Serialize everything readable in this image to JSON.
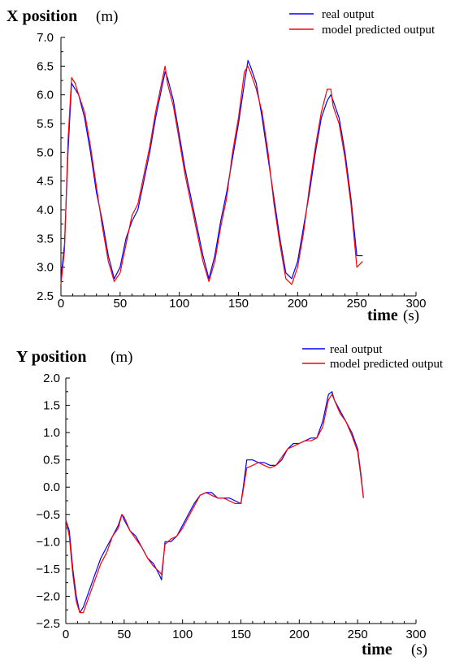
{
  "chart_data": [
    {
      "type": "line",
      "ylabel": "X position",
      "ylabel_unit": "(m)",
      "xlabel": "time",
      "xlabel_unit": "(s)",
      "xlim": [
        0,
        300
      ],
      "ylim": [
        2.5,
        7.0
      ],
      "xticks": [
        "0",
        "50",
        "100",
        "150",
        "200",
        "250",
        "300"
      ],
      "yticks": [
        "2.5",
        "3.0",
        "3.5",
        "4.0",
        "4.5",
        "5.0",
        "5.5",
        "6.0",
        "6.5",
        "7.0"
      ],
      "legend_position": "top-right",
      "series": [
        {
          "name": "real output",
          "color": "#0000ff",
          "x": [
            0,
            3,
            6,
            9,
            12,
            15,
            20,
            25,
            30,
            35,
            40,
            45,
            50,
            55,
            60,
            65,
            70,
            75,
            80,
            85,
            88,
            90,
            95,
            100,
            105,
            110,
            115,
            120,
            125,
            130,
            135,
            140,
            145,
            150,
            155,
            158,
            160,
            165,
            170,
            175,
            180,
            185,
            190,
            195,
            200,
            205,
            210,
            215,
            220,
            225,
            228,
            230,
            235,
            240,
            245,
            250,
            255
          ],
          "y": [
            2.8,
            3.4,
            5.0,
            6.2,
            6.1,
            6.0,
            5.6,
            5.0,
            4.3,
            3.8,
            3.2,
            2.8,
            3.0,
            3.5,
            3.8,
            4.0,
            4.5,
            5.0,
            5.6,
            6.1,
            6.4,
            6.3,
            5.9,
            5.3,
            4.7,
            4.2,
            3.7,
            3.2,
            2.8,
            3.2,
            3.8,
            4.3,
            4.9,
            5.5,
            6.2,
            6.6,
            6.5,
            6.2,
            5.6,
            4.9,
            4.2,
            3.5,
            2.9,
            2.8,
            3.1,
            3.7,
            4.3,
            5.0,
            5.6,
            5.9,
            6.0,
            5.9,
            5.6,
            5.0,
            4.2,
            3.2,
            3.2
          ]
        },
        {
          "name": "model predicted output",
          "color": "#ff0000",
          "x": [
            0,
            3,
            6,
            9,
            12,
            15,
            20,
            25,
            30,
            35,
            40,
            45,
            50,
            55,
            60,
            65,
            70,
            75,
            80,
            85,
            88,
            90,
            95,
            100,
            105,
            110,
            115,
            120,
            125,
            130,
            135,
            140,
            145,
            150,
            155,
            158,
            160,
            165,
            170,
            175,
            180,
            185,
            190,
            195,
            200,
            205,
            210,
            215,
            220,
            225,
            228,
            230,
            235,
            240,
            245,
            250,
            255
          ],
          "y": [
            2.7,
            3.3,
            5.2,
            6.3,
            6.2,
            6.0,
            5.7,
            5.1,
            4.4,
            3.7,
            3.1,
            2.75,
            2.9,
            3.4,
            3.9,
            4.1,
            4.6,
            5.1,
            5.7,
            6.2,
            6.5,
            6.2,
            5.8,
            5.2,
            4.6,
            4.1,
            3.6,
            3.1,
            2.75,
            3.1,
            3.7,
            4.2,
            5.0,
            5.6,
            6.4,
            6.5,
            6.4,
            6.1,
            5.7,
            5.0,
            4.1,
            3.4,
            2.8,
            2.7,
            3.0,
            3.6,
            4.4,
            5.1,
            5.7,
            6.1,
            6.1,
            5.8,
            5.5,
            4.9,
            4.1,
            3.0,
            3.1
          ]
        }
      ]
    },
    {
      "type": "line",
      "ylabel": "Y position",
      "ylabel_unit": "(m)",
      "xlabel": "time",
      "xlabel_unit": "(s)",
      "xlim": [
        0,
        300
      ],
      "ylim": [
        -2.5,
        2.0
      ],
      "xticks": [
        "0",
        "50",
        "100",
        "150",
        "200",
        "250",
        "300"
      ],
      "yticks": [
        "−2.5",
        "−2.0",
        "−1.5",
        "−1.0",
        "−0.5",
        "0.0",
        "0.5",
        "1.0",
        "1.5",
        "2.0"
      ],
      "legend_position": "top-right",
      "series": [
        {
          "name": "real output",
          "color": "#0000ff",
          "x": [
            0,
            3,
            6,
            9,
            12,
            15,
            20,
            25,
            30,
            35,
            40,
            45,
            48,
            50,
            55,
            60,
            65,
            70,
            75,
            80,
            82,
            85,
            90,
            95,
            100,
            105,
            110,
            115,
            120,
            125,
            130,
            135,
            140,
            145,
            150,
            152,
            155,
            160,
            165,
            170,
            175,
            180,
            185,
            190,
            195,
            200,
            205,
            210,
            215,
            220,
            225,
            228,
            230,
            235,
            240,
            245,
            250,
            253,
            255
          ],
          "y": [
            -0.6,
            -0.8,
            -1.5,
            -2.0,
            -2.3,
            -2.2,
            -1.9,
            -1.6,
            -1.3,
            -1.1,
            -0.9,
            -0.7,
            -0.5,
            -0.6,
            -0.8,
            -0.9,
            -1.1,
            -1.3,
            -1.4,
            -1.6,
            -1.7,
            -1.0,
            -1.0,
            -0.9,
            -0.7,
            -0.5,
            -0.3,
            -0.15,
            -0.1,
            -0.1,
            -0.2,
            -0.2,
            -0.2,
            -0.25,
            -0.3,
            0.0,
            0.5,
            0.5,
            0.45,
            0.45,
            0.4,
            0.4,
            0.5,
            0.7,
            0.8,
            0.8,
            0.85,
            0.9,
            0.9,
            1.2,
            1.7,
            1.75,
            1.6,
            1.4,
            1.2,
            1.0,
            0.7,
            0.2,
            -0.2
          ]
        },
        {
          "name": "model predicted output",
          "color": "#ff0000",
          "x": [
            0,
            3,
            6,
            9,
            12,
            15,
            20,
            25,
            30,
            35,
            40,
            45,
            48,
            50,
            55,
            60,
            65,
            70,
            75,
            80,
            82,
            85,
            90,
            95,
            100,
            105,
            110,
            115,
            120,
            125,
            130,
            135,
            140,
            145,
            150,
            152,
            155,
            160,
            165,
            170,
            175,
            180,
            185,
            190,
            195,
            200,
            205,
            210,
            215,
            220,
            225,
            228,
            230,
            235,
            240,
            245,
            250,
            253,
            255
          ],
          "y": [
            -0.6,
            -0.9,
            -1.6,
            -2.1,
            -2.3,
            -2.3,
            -2.0,
            -1.7,
            -1.4,
            -1.2,
            -0.9,
            -0.75,
            -0.5,
            -0.55,
            -0.8,
            -0.95,
            -1.1,
            -1.3,
            -1.45,
            -1.55,
            -1.6,
            -1.05,
            -0.95,
            -0.9,
            -0.75,
            -0.55,
            -0.35,
            -0.15,
            -0.1,
            -0.15,
            -0.2,
            -0.2,
            -0.25,
            -0.3,
            -0.3,
            -0.05,
            0.35,
            0.4,
            0.45,
            0.4,
            0.35,
            0.4,
            0.55,
            0.7,
            0.75,
            0.8,
            0.85,
            0.85,
            0.9,
            1.1,
            1.6,
            1.7,
            1.6,
            1.35,
            1.2,
            0.95,
            0.65,
            0.15,
            -0.2
          ]
        }
      ]
    }
  ]
}
